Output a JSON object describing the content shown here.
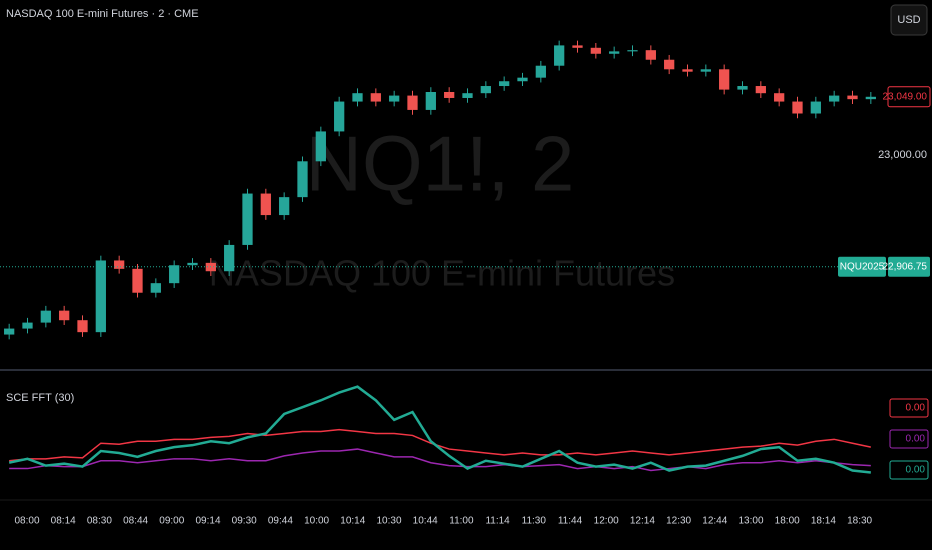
{
  "chart_data": [
    {
      "type": "candlestick",
      "title": "NASDAQ 100 E-mini Futures · 2 · CME",
      "currency": "USD",
      "watermark": {
        "symbol": "NQ1!, 2",
        "name": "NASDAQ 100 E-mini Futures"
      },
      "up_color": "#26a69a",
      "down_color": "#ef5350",
      "open": [
        22850,
        22855,
        22860,
        22870,
        22862,
        22852,
        22912,
        22905,
        22885,
        22893,
        22908,
        22910,
        22903,
        22925,
        22968,
        22950,
        22965,
        22995,
        23020,
        23045,
        23052,
        23045,
        23050,
        23038,
        23053,
        23048,
        23052,
        23058,
        23062,
        23065,
        23075,
        23092,
        23090,
        23085,
        23087,
        23088,
        23080,
        23072,
        23070,
        23072,
        23055,
        23058,
        23052,
        23045,
        23035,
        23045,
        23050,
        23047
      ],
      "high": [
        22859,
        22864,
        22874,
        22874,
        22866,
        22916,
        22916,
        22909,
        22897,
        22912,
        22914,
        22914,
        22929,
        22972,
        22972,
        22969,
        22999,
        23024,
        23049,
        23056,
        23056,
        23054,
        23054,
        23057,
        23057,
        23056,
        23062,
        23066,
        23069,
        23079,
        23096,
        23096,
        23094,
        23091,
        23092,
        23092,
        23084,
        23076,
        23076,
        23076,
        23062,
        23062,
        23056,
        23049,
        23049,
        23054,
        23054,
        23053
      ],
      "low": [
        22846,
        22851,
        22856,
        22858,
        22848,
        22848,
        22901,
        22881,
        22881,
        22889,
        22904,
        22899,
        22899,
        22921,
        22946,
        22946,
        22961,
        22991,
        23016,
        23041,
        23041,
        23041,
        23034,
        23034,
        23044,
        23044,
        23048,
        23054,
        23058,
        23061,
        23071,
        23086,
        23081,
        23081,
        23083,
        23076,
        23068,
        23066,
        23066,
        23051,
        23051,
        23048,
        23041,
        23031,
        23031,
        23041,
        23043,
        23043
      ],
      "close": [
        22855,
        22860,
        22870,
        22862,
        22852,
        22912,
        22905,
        22885,
        22893,
        22908,
        22910,
        22903,
        22925,
        22968,
        22950,
        22965,
        22995,
        23020,
        23045,
        23052,
        23045,
        23050,
        23038,
        23053,
        23048,
        23052,
        23058,
        23062,
        23065,
        23075,
        23092,
        23090,
        23085,
        23087,
        23088,
        23080,
        23072,
        23070,
        23072,
        23055,
        23058,
        23052,
        23045,
        23035,
        23045,
        23050,
        23047,
        23049
      ],
      "ylim": [
        22822,
        23130
      ],
      "yticks": [
        {
          "value": 23000,
          "label": "23,000.00"
        }
      ],
      "last_price": {
        "value": 23049,
        "label": "23,049.00",
        "color": "#f23645"
      },
      "price_line": {
        "value": 22906.75,
        "label": "22,906.75",
        "tag": "NQU2025",
        "color": "#22ab94"
      },
      "x_labels": [
        "08:00",
        "08:14",
        "08:30",
        "08:44",
        "09:00",
        "09:14",
        "09:30",
        "09:44",
        "10:00",
        "10:14",
        "10:30",
        "10:44",
        "11:00",
        "11:14",
        "11:30",
        "11:44",
        "12:00",
        "12:14",
        "12:30",
        "12:44",
        "13:00",
        "18:00",
        "18:14",
        "18:30"
      ]
    },
    {
      "type": "line",
      "title": "SCE FFT (30)",
      "ylim": [
        0,
        0.0118
      ],
      "series": [
        {
          "color": "#f23645",
          "value_label": "0.00",
          "values": [
            0.003,
            0.0032,
            0.0032,
            0.0034,
            0.0033,
            0.0048,
            0.0047,
            0.005,
            0.005,
            0.0052,
            0.0052,
            0.0054,
            0.0055,
            0.0058,
            0.0056,
            0.0058,
            0.006,
            0.006,
            0.0062,
            0.006,
            0.0058,
            0.0058,
            0.0056,
            0.0048,
            0.0042,
            0.004,
            0.0038,
            0.0036,
            0.0038,
            0.0036,
            0.0036,
            0.0038,
            0.0036,
            0.0038,
            0.004,
            0.0038,
            0.0036,
            0.0038,
            0.004,
            0.0042,
            0.0044,
            0.0045,
            0.0048,
            0.0046,
            0.005,
            0.0052,
            0.0048,
            0.0044
          ]
        },
        {
          "color": "#9c27b0",
          "value_label": "0.00",
          "values": [
            0.0022,
            0.0022,
            0.0025,
            0.0024,
            0.0024,
            0.003,
            0.003,
            0.0028,
            0.003,
            0.0032,
            0.0032,
            0.003,
            0.0032,
            0.003,
            0.003,
            0.0035,
            0.0038,
            0.004,
            0.004,
            0.0042,
            0.0038,
            0.0034,
            0.0034,
            0.0028,
            0.0025,
            0.0024,
            0.0024,
            0.0026,
            0.0024,
            0.0025,
            0.0026,
            0.0022,
            0.0024,
            0.0022,
            0.0024,
            0.002,
            0.0022,
            0.0024,
            0.0022,
            0.0026,
            0.0028,
            0.0028,
            0.003,
            0.0028,
            0.003,
            0.0028,
            0.0026,
            0.0025
          ]
        },
        {
          "color": "#22ab94",
          "value_label": "0.00",
          "values": [
            0.0028,
            0.0032,
            0.0025,
            0.0027,
            0.0024,
            0.004,
            0.0038,
            0.0034,
            0.004,
            0.0044,
            0.0046,
            0.005,
            0.0048,
            0.0054,
            0.0058,
            0.0078,
            0.0085,
            0.0092,
            0.01,
            0.0106,
            0.0092,
            0.0072,
            0.008,
            0.005,
            0.0035,
            0.0022,
            0.003,
            0.0027,
            0.0024,
            0.0032,
            0.004,
            0.0028,
            0.0024,
            0.0026,
            0.0022,
            0.0028,
            0.002,
            0.0024,
            0.0025,
            0.003,
            0.0035,
            0.0042,
            0.0044,
            0.003,
            0.0032,
            0.0028,
            0.002,
            0.0018
          ]
        }
      ]
    }
  ]
}
